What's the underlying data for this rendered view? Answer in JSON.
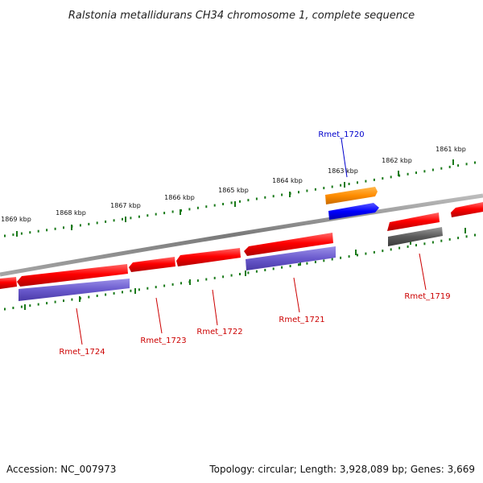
{
  "title": "Ralstonia metallidurans CH34 chromosome 1, complete sequence",
  "footer": {
    "accession": "Accession: NC_007973",
    "summary": "Topology: circular; Length: 3,928,089 bp; Genes: 3,669"
  },
  "kbp_labels": [
    "1869 kbp",
    "1868 kbp",
    "1867 kbp",
    "1866 kbp",
    "1865 kbp",
    "1864 kbp",
    "1863 kbp",
    "1862 kbp",
    "1861 kbp"
  ],
  "genes": [
    {
      "name": "Rmet_1720",
      "color": "#0000cc"
    },
    {
      "name": "Rmet_1719",
      "color": "#cc0000"
    },
    {
      "name": "Rmet_1721",
      "color": "#cc0000"
    },
    {
      "name": "Rmet_1722",
      "color": "#cc0000"
    },
    {
      "name": "Rmet_1723",
      "color": "#cc0000"
    },
    {
      "name": "Rmet_1724",
      "color": "#cc0000"
    }
  ],
  "colors": {
    "backbone": "#8c8c8c",
    "tick": "#1a7a1a",
    "cds_red": "#ff0000",
    "gene_blue": "#0000ff",
    "gene_orange": "#ff8c00",
    "gene_purple": "#6a5acd",
    "gene_gray": "#555555"
  }
}
